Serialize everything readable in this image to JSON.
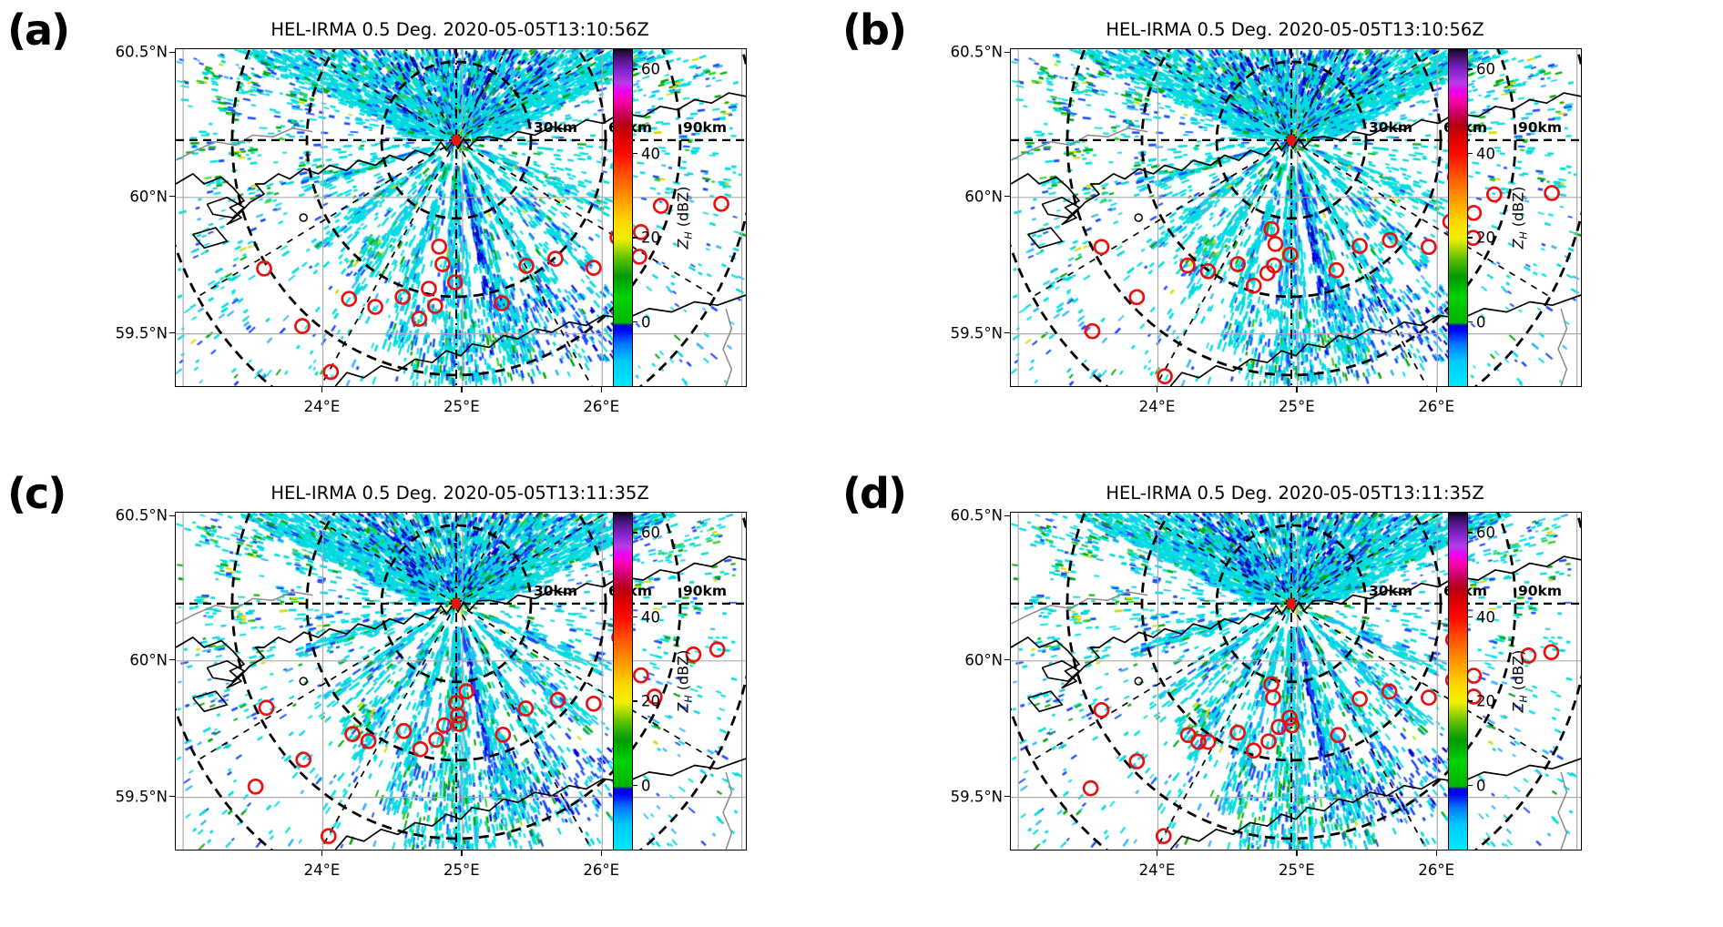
{
  "chart_data": {
    "type": "radar_ppi_maps",
    "figure_note": "2x2 grid of PPI radar reflectivity maps with detection circles",
    "panels": [
      {
        "label": "(a)",
        "title": "HEL-IRMA 0.5 Deg. 2020-05-05T13:10:56Z",
        "detections": [
          [
            0.781,
            0.403
          ],
          [
            0.851,
            0.465
          ],
          [
            0.957,
            0.459
          ],
          [
            0.816,
            0.543
          ],
          [
            0.775,
            0.559
          ],
          [
            0.813,
            0.616
          ],
          [
            0.733,
            0.649
          ],
          [
            0.666,
            0.622
          ],
          [
            0.615,
            0.643
          ],
          [
            0.462,
            0.586
          ],
          [
            0.468,
            0.638
          ],
          [
            0.49,
            0.692
          ],
          [
            0.444,
            0.711
          ],
          [
            0.455,
            0.762
          ],
          [
            0.427,
            0.8
          ],
          [
            0.398,
            0.735
          ],
          [
            0.35,
            0.765
          ],
          [
            0.304,
            0.741
          ],
          [
            0.222,
            0.822
          ],
          [
            0.155,
            0.651
          ],
          [
            0.572,
            0.754
          ],
          [
            0.272,
            0.958
          ]
        ]
      },
      {
        "label": "(b)",
        "title": "HEL-IRMA 0.5 Deg. 2020-05-05T13:10:56Z",
        "detections": [
          [
            0.779,
            0.379
          ],
          [
            0.848,
            0.431
          ],
          [
            0.949,
            0.427
          ],
          [
            0.812,
            0.486
          ],
          [
            0.771,
            0.512
          ],
          [
            0.811,
            0.56
          ],
          [
            0.733,
            0.587
          ],
          [
            0.665,
            0.567
          ],
          [
            0.612,
            0.584
          ],
          [
            0.457,
            0.534
          ],
          [
            0.464,
            0.578
          ],
          [
            0.159,
            0.587
          ],
          [
            0.49,
            0.61
          ],
          [
            0.462,
            0.642
          ],
          [
            0.45,
            0.665
          ],
          [
            0.398,
            0.638
          ],
          [
            0.346,
            0.659
          ],
          [
            0.31,
            0.642
          ],
          [
            0.426,
            0.702
          ],
          [
            0.571,
            0.656
          ],
          [
            0.221,
            0.736
          ],
          [
            0.143,
            0.837
          ],
          [
            0.27,
            0.971
          ]
        ]
      },
      {
        "label": "(c)",
        "title": "HEL-IRMA 0.5 Deg. 2020-05-05T13:11:35Z",
        "detections": [
          [
            0.778,
            0.37
          ],
          [
            0.908,
            0.421
          ],
          [
            0.95,
            0.406
          ],
          [
            0.781,
            0.491
          ],
          [
            0.816,
            0.483
          ],
          [
            0.84,
            0.546
          ],
          [
            0.51,
            0.53
          ],
          [
            0.492,
            0.565
          ],
          [
            0.614,
            0.581
          ],
          [
            0.67,
            0.556
          ],
          [
            0.733,
            0.567
          ],
          [
            0.159,
            0.579
          ],
          [
            0.495,
            0.602
          ],
          [
            0.498,
            0.627
          ],
          [
            0.471,
            0.631
          ],
          [
            0.4,
            0.648
          ],
          [
            0.31,
            0.657
          ],
          [
            0.338,
            0.678
          ],
          [
            0.457,
            0.674
          ],
          [
            0.574,
            0.659
          ],
          [
            0.429,
            0.702
          ],
          [
            0.224,
            0.733
          ],
          [
            0.14,
            0.813
          ],
          [
            0.268,
            0.96
          ]
        ]
      },
      {
        "label": "(d)",
        "title": "HEL-IRMA 0.5 Deg. 2020-05-05T13:11:35Z",
        "detections": [
          [
            0.776,
            0.377
          ],
          [
            0.908,
            0.424
          ],
          [
            0.948,
            0.414
          ],
          [
            0.776,
            0.497
          ],
          [
            0.812,
            0.484
          ],
          [
            0.812,
            0.546
          ],
          [
            0.457,
            0.509
          ],
          [
            0.46,
            0.549
          ],
          [
            0.612,
            0.553
          ],
          [
            0.664,
            0.531
          ],
          [
            0.733,
            0.549
          ],
          [
            0.159,
            0.586
          ],
          [
            0.489,
            0.609
          ],
          [
            0.493,
            0.631
          ],
          [
            0.47,
            0.636
          ],
          [
            0.398,
            0.653
          ],
          [
            0.311,
            0.66
          ],
          [
            0.329,
            0.68
          ],
          [
            0.346,
            0.68
          ],
          [
            0.452,
            0.679
          ],
          [
            0.574,
            0.66
          ],
          [
            0.426,
            0.706
          ],
          [
            0.221,
            0.738
          ],
          [
            0.14,
            0.818
          ],
          [
            0.268,
            0.96
          ]
        ]
      }
    ],
    "geo_axes": {
      "lon_tick_labels": [
        "24°E",
        "25°E",
        "26°E"
      ],
      "lon_tick_pos": [
        0.258,
        0.503,
        0.748
      ],
      "unlabeled_lon_pos": [
        0.013,
        0.993
      ],
      "lat_tick_labels": [
        "60.5°N",
        "60°N",
        "59.5°N"
      ],
      "lat_tick_pos": [
        0.012,
        0.44,
        0.845
      ]
    },
    "radar": {
      "center_pos": [
        0.492,
        0.27
      ],
      "center_color": "#ee1010",
      "range_rings_km": [
        30,
        60,
        90,
        120
      ],
      "range_labels": [
        "30km",
        "60km",
        "90km"
      ]
    },
    "colorbar": {
      "label_prefix": "Z",
      "label_sub": "H",
      "label_suffix": " (dBZ)",
      "ticks": [
        60,
        40,
        20,
        0
      ],
      "vmin": -15,
      "vmax": 65,
      "stops": [
        [
          -15,
          "#00e8ff"
        ],
        [
          -9,
          "#00c8ff"
        ],
        [
          -5,
          "#0076ff"
        ],
        [
          -2,
          "#0008ff"
        ],
        [
          -0.6,
          "#0000cf"
        ],
        [
          0,
          "#00b400"
        ],
        [
          6,
          "#00d200"
        ],
        [
          11,
          "#009b00"
        ],
        [
          15,
          "#57be00"
        ],
        [
          18,
          "#b4dc00"
        ],
        [
          20,
          "#f0f000"
        ],
        [
          24,
          "#ffd800"
        ],
        [
          28,
          "#ffaa00"
        ],
        [
          32,
          "#ff7800"
        ],
        [
          36,
          "#ff4600"
        ],
        [
          40,
          "#ff0a00"
        ],
        [
          44,
          "#dc0000"
        ],
        [
          47,
          "#b40014"
        ],
        [
          50,
          "#cc0064"
        ],
        [
          53,
          "#ff00b4"
        ],
        [
          55,
          "#f000f0"
        ],
        [
          57,
          "#b43ce8"
        ],
        [
          60,
          "#8223cb"
        ],
        [
          62,
          "#5a1996"
        ],
        [
          64,
          "#2d0e50"
        ],
        [
          65,
          "#0f0518"
        ]
      ]
    },
    "detection_marker_color": "#e81111",
    "echo_palette": {
      "cyan": "#00dce0",
      "sky": "#35b4ff",
      "blue": "#1646ff",
      "deep_blue": "#0000cd",
      "green": "#00a800",
      "bright_green": "#30d230",
      "yellow": "#d2dc00"
    }
  }
}
